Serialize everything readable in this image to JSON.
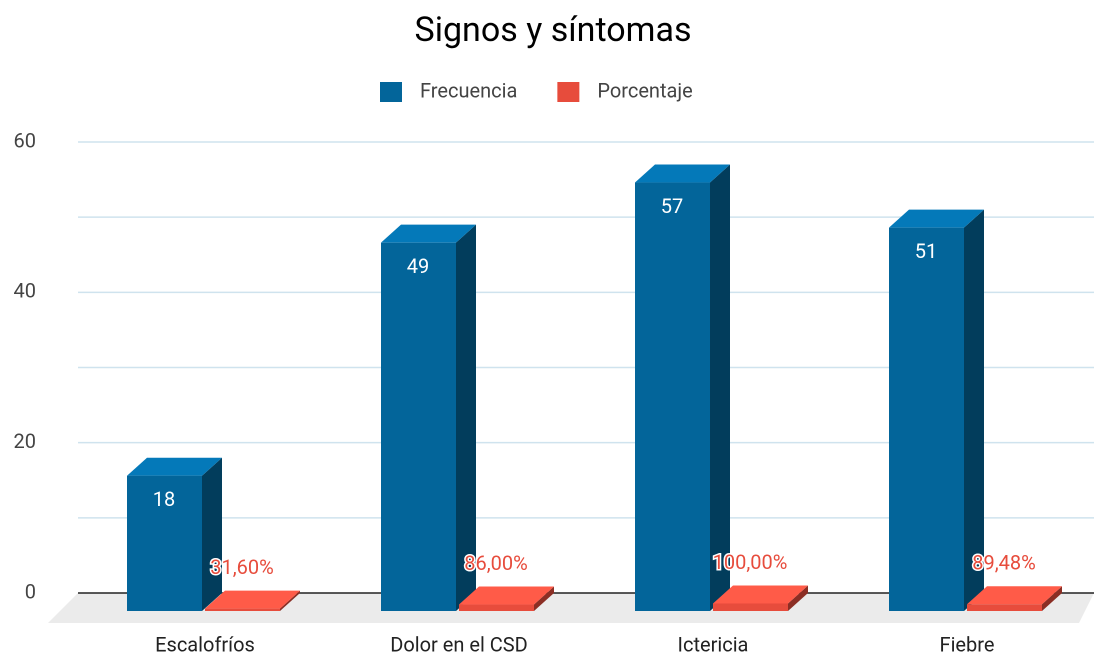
{
  "chart_data": {
    "type": "bar3d",
    "title": "Signos y síntomas",
    "categories": [
      "Escalofríos",
      "Dolor en el CSD",
      "Ictericia",
      "Fiebre"
    ],
    "series": [
      {
        "name": "Frecuencia",
        "color": "#03659a",
        "values": [
          18,
          49,
          57,
          51
        ]
      },
      {
        "name": "Porcentaje",
        "color": "#e74c3c",
        "values": [
          0.316,
          0.86,
          1,
          0.8948
        ],
        "value_labels": [
          "31,60%",
          "86,00%",
          "100,00%",
          "89,48%"
        ]
      }
    ],
    "ylim": [
      0,
      60
    ],
    "yticks": [
      0,
      20,
      40,
      60
    ],
    "yminor": [
      10,
      30,
      50
    ],
    "grid": true,
    "legend": "top"
  }
}
